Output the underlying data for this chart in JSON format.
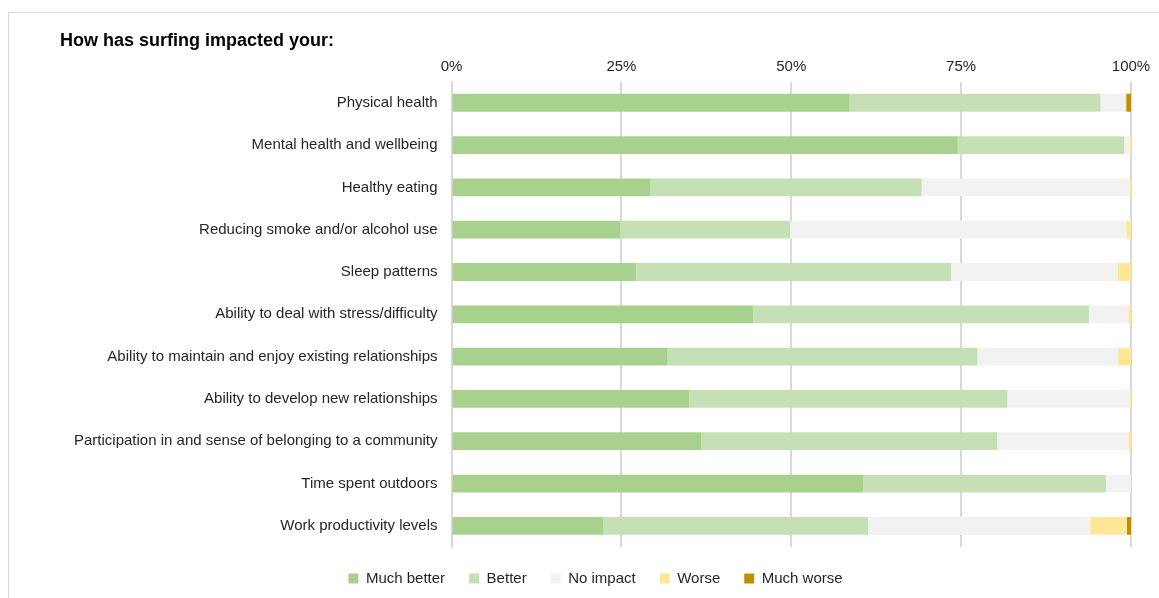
{
  "chart_data": {
    "type": "bar",
    "orientation": "horizontal",
    "stacked": true,
    "title": "How has surfing impacted your:",
    "categories": [
      "Physical health",
      "Mental health and wellbeing",
      "Healthy eating",
      "Reducing smoke and/or alcohol use",
      "Sleep patterns",
      "Ability to deal with stress/difficulty",
      "Ability to maintain and enjoy existing relationships",
      "Ability to develop new relationships",
      "Participation in and sense of belonging to a community",
      "Time spent outdoors",
      "Work productivity levels"
    ],
    "series": [
      {
        "name": "Much better",
        "color": "#a9d18e",
        "values": [
          58.6,
          74.5,
          29.3,
          24.8,
          27.2,
          44.4,
          31.8,
          35.0,
          36.8,
          60.6,
          22.3
        ]
      },
      {
        "name": "Better",
        "color": "#c5e0b4",
        "values": [
          36.9,
          24.5,
          39.9,
          25.0,
          46.3,
          49.4,
          45.6,
          46.8,
          43.5,
          35.7,
          39.0
        ]
      },
      {
        "name": "No impact",
        "color": "#f2f2f2",
        "values": [
          3.6,
          0.8,
          30.6,
          49.5,
          24.5,
          5.8,
          20.7,
          18.0,
          19.3,
          3.7,
          32.7
        ]
      },
      {
        "name": "Worse",
        "color": "#ffe699",
        "values": [
          0.2,
          0.2,
          0.2,
          0.7,
          2.0,
          0.4,
          1.9,
          0.2,
          0.4,
          0,
          5.4
        ]
      },
      {
        "name": "Much worse",
        "color": "#bf9000",
        "values": [
          0.7,
          0,
          0,
          0,
          0,
          0,
          0,
          0,
          0,
          0,
          0.6
        ]
      }
    ],
    "xlim": [
      0,
      100
    ],
    "xticks": [
      {
        "value": 0,
        "label": "0%"
      },
      {
        "value": 25,
        "label": "25%"
      },
      {
        "value": 50,
        "label": "50%"
      },
      {
        "value": 75,
        "label": "75%"
      },
      {
        "value": 100,
        "label": "100%"
      }
    ],
    "grid": "x",
    "legend": "bottom"
  }
}
